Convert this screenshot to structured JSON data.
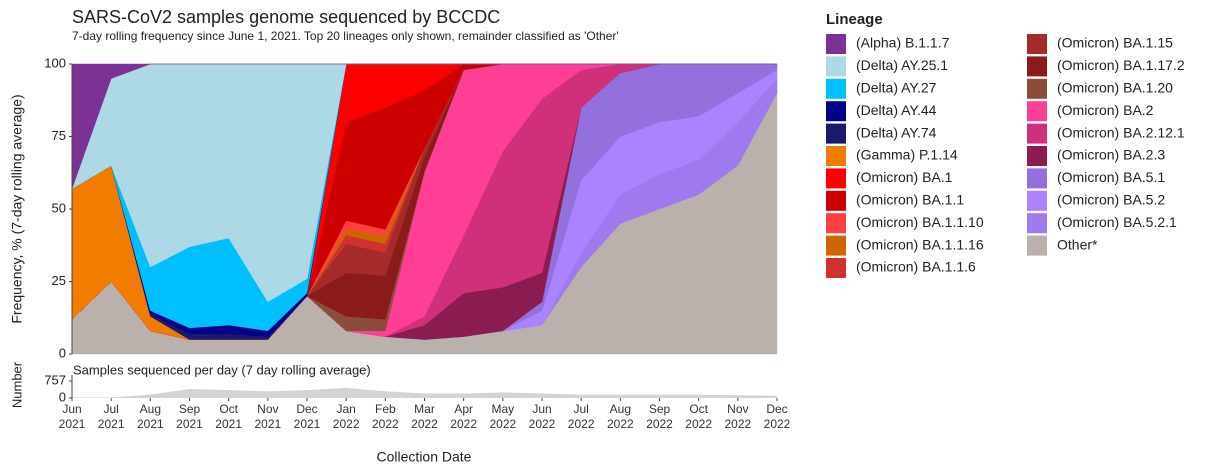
{
  "chart_data": [
    {
      "type": "stacked-area",
      "title": "SARS-CoV2 samples genome sequenced by BCCDC",
      "subtitle": "7-day rolling frequency since June 1, 2021.  Top 20 lineages only shown, remainder classified as 'Other'",
      "y_label": "Frequency, % (7-day rolling average)",
      "x_label": "Collection Date",
      "legend_title": "Lineage",
      "x": [
        "Jun 2021",
        "Jul 2021",
        "Aug 2021",
        "Sep 2021",
        "Oct 2021",
        "Nov 2021",
        "Dec 2021",
        "Jan 2022",
        "Feb 2022",
        "Mar 2022",
        "Apr 2022",
        "May 2022",
        "Jun 2022",
        "Jul 2022",
        "Aug 2022",
        "Sep 2022",
        "Oct 2022",
        "Nov 2022",
        "Dec 2022"
      ],
      "ylim": [
        0,
        100
      ],
      "yticks": [
        0,
        25,
        50,
        75,
        100
      ],
      "series": [
        {
          "name": "(Alpha) B.1.1.7",
          "color": "#7b3294",
          "values": [
            43,
            5,
            0,
            0,
            0,
            0,
            0,
            0,
            0,
            0,
            0,
            0,
            0,
            0,
            0,
            0,
            0,
            0,
            0
          ]
        },
        {
          "name": "(Delta) AY.25.1",
          "color": "#add8e6",
          "values": [
            0,
            30,
            70,
            63,
            60,
            82,
            74,
            0,
            0,
            0,
            0,
            0,
            0,
            0,
            0,
            0,
            0,
            0,
            0
          ]
        },
        {
          "name": "(Delta) AY.27",
          "color": "#00bfff",
          "values": [
            0,
            0,
            15,
            28,
            30,
            10,
            5,
            0,
            0,
            0,
            0,
            0,
            0,
            0,
            0,
            0,
            0,
            0,
            0
          ]
        },
        {
          "name": "(Delta) AY.44",
          "color": "#00008b",
          "values": [
            0,
            0,
            1,
            2,
            3,
            2,
            1,
            0,
            0,
            0,
            0,
            0,
            0,
            0,
            0,
            0,
            0,
            0,
            0
          ]
        },
        {
          "name": "(Delta) AY.74",
          "color": "#191970",
          "values": [
            0,
            0,
            1,
            2,
            2,
            1,
            0,
            0,
            0,
            0,
            0,
            0,
            0,
            0,
            0,
            0,
            0,
            0,
            0
          ]
        },
        {
          "name": "(Gamma) P.1.14",
          "color": "#f07c00",
          "values": [
            45,
            40,
            5,
            0,
            0,
            0,
            0,
            0,
            0,
            0,
            0,
            0,
            0,
            0,
            0,
            0,
            0,
            0,
            0
          ]
        },
        {
          "name": "(Omicron) BA.1",
          "color": "#ff0000",
          "values": [
            0,
            0,
            0,
            0,
            0,
            0,
            0,
            20,
            15,
            9,
            0,
            0,
            0,
            0,
            0,
            0,
            0,
            0,
            0
          ]
        },
        {
          "name": "(Omicron) BA.1.1",
          "color": "#cc0000",
          "values": [
            0,
            0,
            0,
            0,
            0,
            0,
            0,
            34,
            42,
            20,
            2,
            0,
            0,
            0,
            0,
            0,
            0,
            0,
            0
          ]
        },
        {
          "name": "(Omicron) BA.1.1.10",
          "color": "#ff4040",
          "values": [
            0,
            0,
            0,
            0,
            0,
            0,
            0,
            3,
            2,
            0,
            0,
            0,
            0,
            0,
            0,
            0,
            0,
            0,
            0
          ]
        },
        {
          "name": "(Omicron) BA.1.1.16",
          "color": "#cd6600",
          "values": [
            0,
            0,
            0,
            0,
            0,
            0,
            0,
            2,
            3,
            0,
            0,
            0,
            0,
            0,
            0,
            0,
            0,
            0,
            0
          ]
        },
        {
          "name": "(Omicron) BA.1.1.6",
          "color": "#d13030",
          "values": [
            0,
            0,
            0,
            0,
            0,
            0,
            0,
            3,
            3,
            0,
            0,
            0,
            0,
            0,
            0,
            0,
            0,
            0,
            0
          ]
        },
        {
          "name": "(Omicron) BA.1.15",
          "color": "#a52a2a",
          "values": [
            0,
            0,
            0,
            0,
            0,
            0,
            0,
            10,
            8,
            3,
            0,
            0,
            0,
            0,
            0,
            0,
            0,
            0,
            0
          ]
        },
        {
          "name": "(Omicron) BA.1.17.2",
          "color": "#8b1a1a",
          "values": [
            0,
            0,
            0,
            0,
            0,
            0,
            0,
            15,
            15,
            5,
            0,
            0,
            0,
            0,
            0,
            0,
            0,
            0,
            0
          ]
        },
        {
          "name": "(Omicron) BA.1.20",
          "color": "#8b4c39",
          "values": [
            0,
            0,
            0,
            0,
            0,
            0,
            0,
            5,
            4,
            0,
            0,
            0,
            0,
            0,
            0,
            0,
            0,
            0,
            0
          ]
        },
        {
          "name": "(Omicron) BA.2",
          "color": "#ff3e96",
          "values": [
            0,
            0,
            0,
            0,
            0,
            0,
            0,
            0,
            2,
            50,
            57,
            30,
            12,
            2,
            0,
            0,
            0,
            0,
            0
          ]
        },
        {
          "name": "(Omicron) BA.2.12.1",
          "color": "#d02f7a",
          "values": [
            0,
            0,
            0,
            0,
            0,
            0,
            0,
            0,
            0,
            3,
            20,
            47,
            60,
            13,
            3,
            0,
            0,
            0,
            0
          ]
        },
        {
          "name": "(Omicron) BA.2.3",
          "color": "#8b1c52",
          "values": [
            0,
            0,
            0,
            0,
            0,
            0,
            0,
            0,
            0,
            5,
            15,
            15,
            10,
            0,
            0,
            0,
            0,
            0,
            0
          ]
        },
        {
          "name": "(Omicron) BA.5.1",
          "color": "#9370db",
          "values": [
            0,
            0,
            0,
            0,
            0,
            0,
            0,
            0,
            0,
            0,
            0,
            0,
            3,
            25,
            22,
            20,
            18,
            10,
            2
          ]
        },
        {
          "name": "(Omicron) BA.5.2",
          "color": "#ab82ff",
          "values": [
            0,
            0,
            0,
            0,
            0,
            0,
            0,
            0,
            0,
            0,
            0,
            0,
            5,
            25,
            20,
            18,
            15,
            10,
            3
          ]
        },
        {
          "name": "(Omicron) BA.5.2.1",
          "color": "#9f79ee",
          "values": [
            0,
            0,
            0,
            0,
            0,
            0,
            0,
            0,
            0,
            0,
            0,
            0,
            0,
            5,
            10,
            12,
            12,
            15,
            5
          ]
        },
        {
          "name": "Other*",
          "color": "#bab0ac",
          "values": [
            12,
            25,
            8,
            5,
            5,
            5,
            20,
            8,
            6,
            5,
            6,
            8,
            10,
            30,
            45,
            50,
            55,
            65,
            90
          ]
        }
      ]
    },
    {
      "type": "area",
      "title": "Samples sequenced per day (7 day rolling average)",
      "y_label": "Number",
      "ylim": [
        0,
        757
      ],
      "yticks": [
        0,
        757
      ],
      "color": "#d3d3d3",
      "values": [
        30,
        20,
        150,
        400,
        350,
        300,
        350,
        450,
        300,
        200,
        200,
        250,
        200,
        150,
        150,
        150,
        150,
        120,
        100
      ]
    }
  ]
}
